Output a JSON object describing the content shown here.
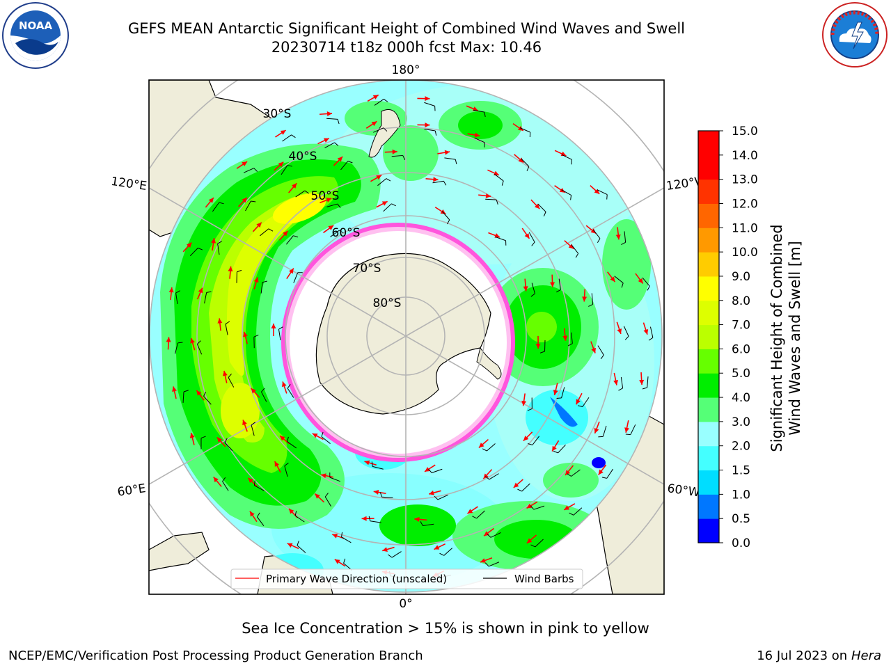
{
  "header": {
    "title": "GEFS MEAN Antarctic Significant Height of Combined Wind Waves and Swell",
    "subtitle": "20230714 t18z 000h fcst   Max: 10.46"
  },
  "logos": {
    "left": "noaa-logo",
    "right": "nws-logo",
    "left_text": "NOAA"
  },
  "map": {
    "projection": "south-polar-stereographic",
    "lon_labels": [
      "180°",
      "120°E",
      "120°W",
      "60°E",
      "60°W",
      "0°"
    ],
    "lat_labels": [
      "30°S",
      "40°S",
      "50°S",
      "60°S",
      "70°S",
      "80°S"
    ]
  },
  "legend": {
    "wave_label": "Primary Wave Direction (unscaled)",
    "wind_label": "Wind Barbs",
    "wave_color": "#ff0000",
    "wind_color": "#000000"
  },
  "colorbar": {
    "label_line1": "Significant Height of Combined",
    "label_line2": "Wind Waves and Swell [m]",
    "ticks": [
      "0.0",
      "0.5",
      "1.0",
      "1.5",
      "2.0",
      "3.0",
      "4.0",
      "5.0",
      "6.0",
      "7.0",
      "8.0",
      "9.0",
      "10.0",
      "11.0",
      "12.0",
      "13.0",
      "14.0",
      "15.0"
    ],
    "colors": [
      "#0000ff",
      "#0077ff",
      "#00ddff",
      "#44ffff",
      "#99ffff",
      "#55ff77",
      "#00ee00",
      "#66ff00",
      "#bbff00",
      "#ddff00",
      "#ffff00",
      "#ffcc00",
      "#ff9900",
      "#ff6600",
      "#ff3300",
      "#ff0000",
      "#ff0000"
    ]
  },
  "chart_data": {
    "type": "heatmap",
    "title": "GEFS MEAN Antarctic Significant Height of Combined Wind Waves and Swell",
    "value_label": "Significant Height of Combined Wind Waves and Swell [m]",
    "scale_range": [
      0,
      15
    ],
    "max_value": 10.46,
    "fcst_time": "20230714 t18z 000h fcst"
  },
  "footer": {
    "note": "Sea Ice Concentration > 15% is shown in pink to yellow",
    "left": "NCEP/EMC/Verification Post Processing Product Generation Branch",
    "right_date": "16 Jul 2023 on ",
    "right_host": "Hera"
  }
}
